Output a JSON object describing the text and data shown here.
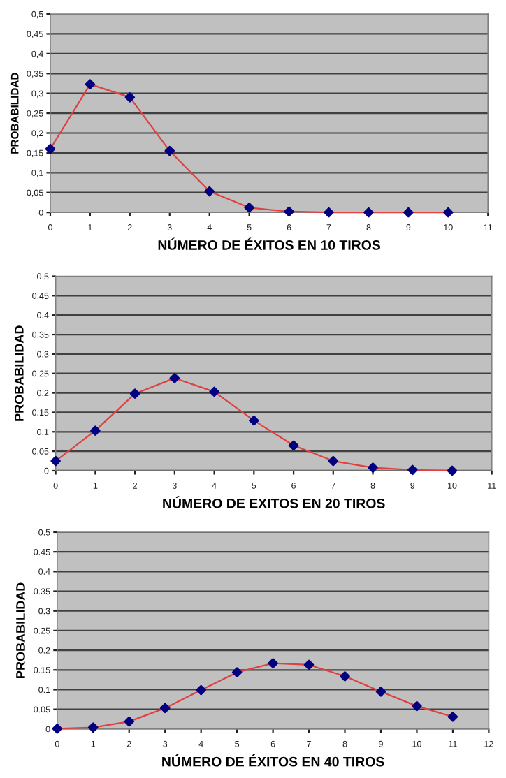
{
  "chart_data": [
    {
      "type": "line",
      "xlabel": "NÚMERO DE ÉXITOS EN 10 TIROS",
      "ylabel": "PROBABILIDAD",
      "x": [
        0,
        1,
        2,
        3,
        4,
        5,
        6,
        7,
        8,
        9,
        10
      ],
      "series": [
        {
          "color": "#000080",
          "values": [
            0.16,
            0.323,
            0.29,
            0.155,
            0.053,
            0.012,
            0.002,
            0,
            0,
            0,
            0
          ]
        }
      ],
      "xlim": [
        0,
        11
      ],
      "xticks": [
        0,
        1,
        2,
        3,
        4,
        5,
        6,
        7,
        8,
        9,
        10,
        11
      ],
      "ylim": [
        0,
        0.5
      ],
      "yticks": [
        0,
        {
          "value": 0.05,
          "label": "0,05"
        },
        {
          "value": 0.1,
          "label": "0,1"
        },
        {
          "value": 0.15,
          "label": "0,15"
        },
        {
          "value": 0.2,
          "label": "0,2"
        },
        {
          "value": 0.25,
          "label": "0,25"
        },
        {
          "value": 0.3,
          "label": "0,3"
        },
        {
          "value": 0.35,
          "label": "0,35"
        },
        {
          "value": 0.4,
          "label": "0,4"
        },
        {
          "value": 0.45,
          "label": "0,45"
        },
        {
          "value": 0.5,
          "label": "0,5"
        }
      ],
      "grid": "y",
      "marker": "diamond",
      "line_style": "solid"
    },
    {
      "type": "line",
      "xlabel": "NÚMERO DE EXITOS EN 20 TIROS",
      "ylabel": "PROBABILIDAD",
      "x": [
        0,
        1,
        2,
        3,
        4,
        5,
        6,
        7,
        8,
        9,
        10
      ],
      "series": [
        {
          "color": "#000080",
          "values": [
            0.025,
            0.103,
            0.198,
            0.238,
            0.203,
            0.129,
            0.065,
            0.025,
            0.008,
            0.002,
            0
          ]
        }
      ],
      "xlim": [
        0,
        11
      ],
      "xticks": [
        0,
        1,
        2,
        3,
        4,
        5,
        6,
        7,
        8,
        9,
        10,
        11
      ],
      "ylim": [
        0,
        0.5
      ],
      "yticks": [
        0,
        0.05,
        0.1,
        0.15,
        0.2,
        0.25,
        0.3,
        0.35,
        0.4,
        0.45,
        0.5
      ],
      "grid": "y",
      "marker": "diamond",
      "line_style": "solid"
    },
    {
      "type": "line",
      "xlabel": "NÚMERO DE ÉXITOS EN 40 TIROS",
      "ylabel": "PROBABILIDAD",
      "x": [
        0,
        1,
        2,
        3,
        4,
        5,
        6,
        7,
        8,
        9,
        10,
        11
      ],
      "series": [
        {
          "color": "#000080",
          "values": [
            0.001,
            0.004,
            0.019,
            0.053,
            0.099,
            0.144,
            0.167,
            0.163,
            0.134,
            0.095,
            0.058,
            0.031
          ]
        }
      ],
      "xlim": [
        0,
        12
      ],
      "xticks": [
        0,
        1,
        2,
        3,
        4,
        5,
        6,
        7,
        8,
        9,
        10,
        11,
        12
      ],
      "ylim": [
        0,
        0.5
      ],
      "yticks": [
        0,
        0.05,
        0.1,
        0.15,
        0.2,
        0.25,
        0.3,
        0.35,
        0.4,
        0.45,
        0.5
      ],
      "grid": "y",
      "marker": "diamond",
      "line_style": "solid"
    }
  ]
}
